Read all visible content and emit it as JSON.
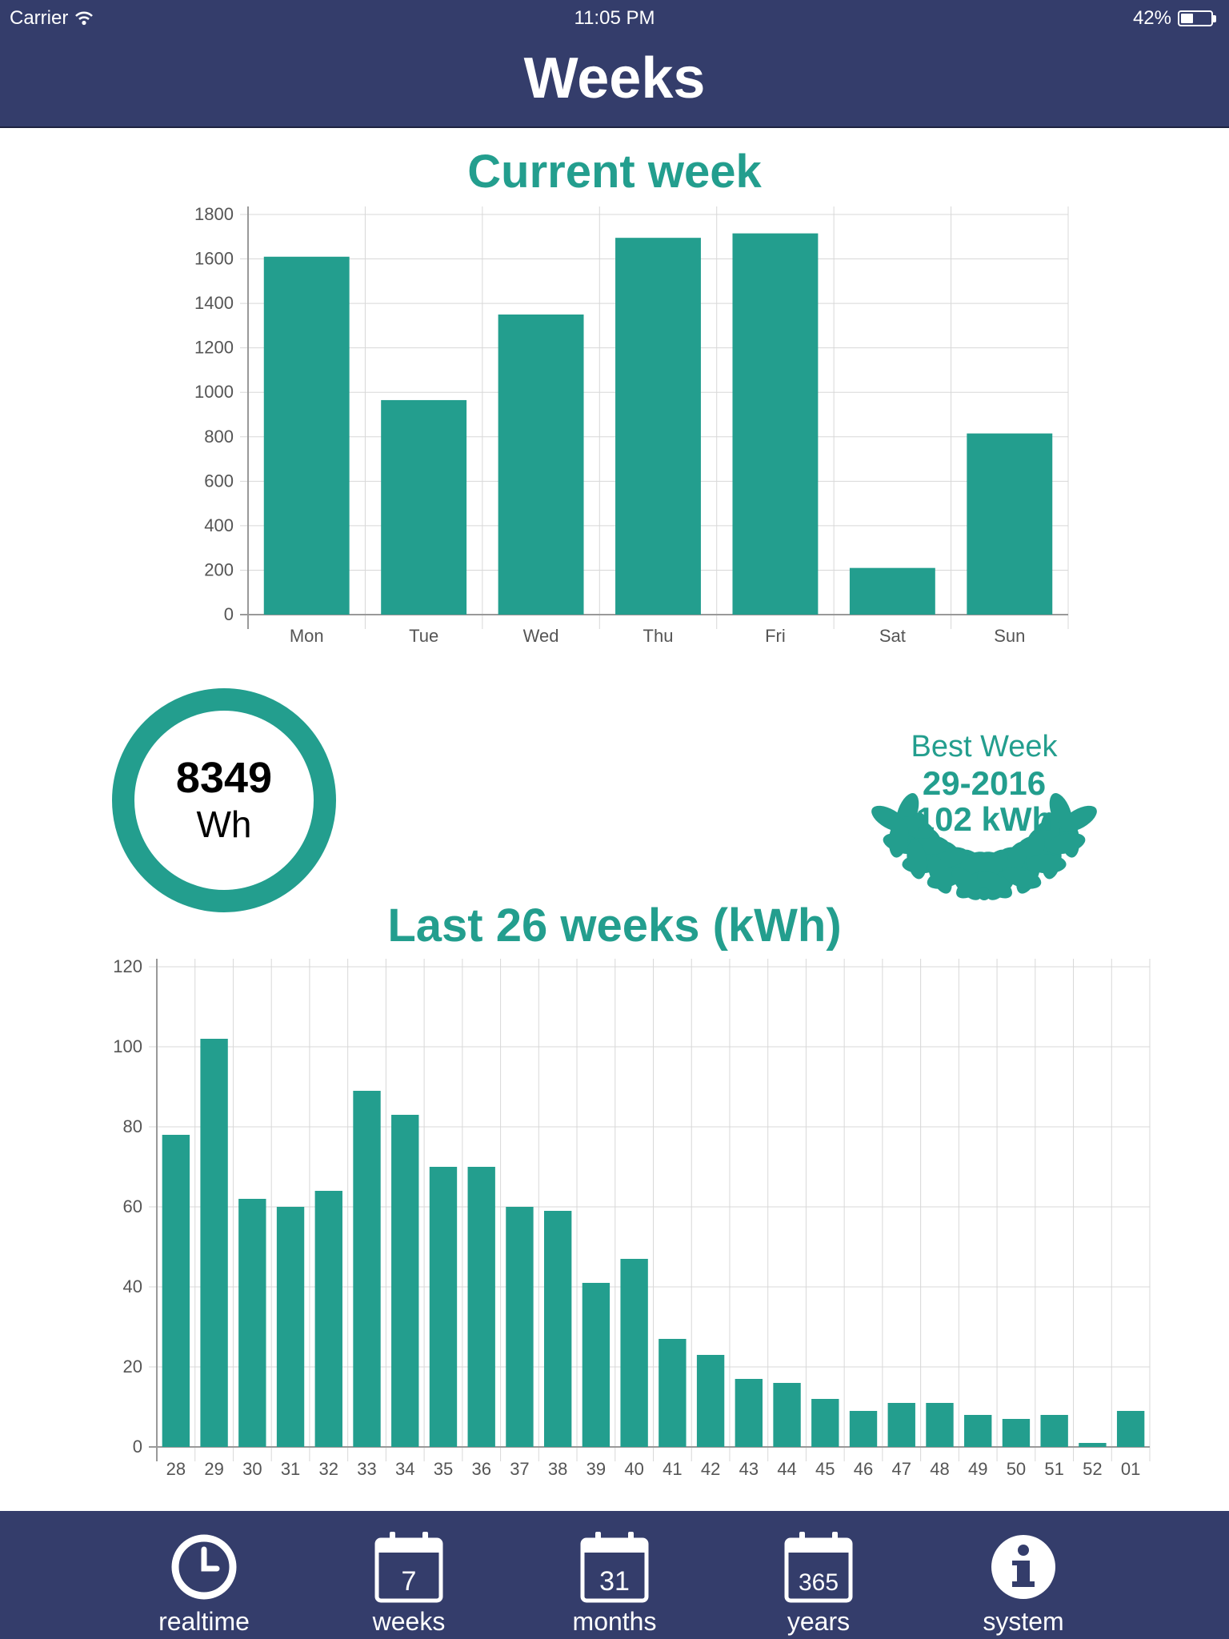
{
  "status_bar": {
    "carrier": "Carrier",
    "time": "11:05 PM",
    "battery": "42%",
    "battery_level": 0.42
  },
  "header": {
    "title": "Weeks"
  },
  "current_week": {
    "title": "Current week"
  },
  "total": {
    "value": "8349",
    "unit": "Wh"
  },
  "best_week": {
    "label": "Best Week",
    "week": "29-2016",
    "value": "102 kWh"
  },
  "last_weeks": {
    "title": "Last 26 weeks (kWh)"
  },
  "tabs": [
    {
      "label": "realtime",
      "icon": "clock-icon"
    },
    {
      "label": "weeks",
      "icon": "calendar-icon",
      "badge": "7"
    },
    {
      "label": "months",
      "icon": "calendar-icon",
      "badge": "31"
    },
    {
      "label": "years",
      "icon": "calendar-icon",
      "badge": "365"
    },
    {
      "label": "system",
      "icon": "info-icon"
    }
  ],
  "colors": {
    "header": "#343d6b",
    "accent": "#239e8e"
  },
  "chart_data": [
    {
      "type": "bar",
      "title": "Current week",
      "categories": [
        "Mon",
        "Tue",
        "Wed",
        "Thu",
        "Fri",
        "Sat",
        "Sun"
      ],
      "values": [
        1610,
        965,
        1350,
        1695,
        1715,
        210,
        815
      ],
      "ylim": [
        0,
        1800
      ],
      "yticks": [
        0,
        200,
        400,
        600,
        800,
        1000,
        1200,
        1400,
        1600,
        1800
      ],
      "grid": true
    },
    {
      "type": "bar",
      "title": "Last 26 weeks (kWh)",
      "categories": [
        "28",
        "29",
        "30",
        "31",
        "32",
        "33",
        "34",
        "35",
        "36",
        "37",
        "38",
        "39",
        "40",
        "41",
        "42",
        "43",
        "44",
        "45",
        "46",
        "47",
        "48",
        "49",
        "50",
        "51",
        "52",
        "01"
      ],
      "values": [
        78,
        102,
        62,
        60,
        64,
        89,
        83,
        70,
        70,
        60,
        59,
        41,
        47,
        27,
        23,
        17,
        16,
        12,
        9,
        11,
        11,
        8,
        7,
        8,
        1,
        9
      ],
      "ylim": [
        0,
        120
      ],
      "yticks": [
        0,
        20,
        40,
        60,
        80,
        100,
        120
      ],
      "grid": true
    }
  ]
}
